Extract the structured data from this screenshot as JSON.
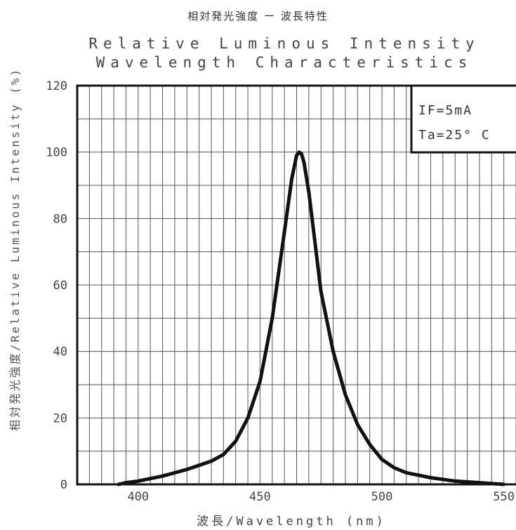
{
  "title_jp": "相対発光強度 ー 波長特性",
  "title_en_line1": "Relative Luminous Intensity",
  "title_en_line2": "Wavelength Characteristics",
  "conditions": {
    "line1": "IF=5mA",
    "line2": "Ta=25° C"
  },
  "chart_data": {
    "type": "line",
    "title": "Relative Luminous Intensity Wavelength Characteristics",
    "xlabel": "波長/Wavelength (nm)",
    "ylabel": "相対発光強度/Relative Luminous Intensity (%)",
    "xlim": [
      375,
      555
    ],
    "ylim": [
      0,
      120
    ],
    "x_ticks": [
      400,
      450,
      500,
      550
    ],
    "y_ticks": [
      0,
      20,
      40,
      60,
      80,
      100,
      120
    ],
    "grid": true,
    "series": [
      {
        "x": [
          392,
          395,
          400,
          410,
          420,
          430,
          435,
          440,
          445,
          450,
          455,
          460,
          463,
          465,
          466,
          467,
          468,
          470,
          473,
          475,
          480,
          485,
          490,
          495,
          500,
          505,
          510,
          520,
          530,
          540,
          550
        ],
        "y": [
          0,
          0.5,
          1,
          2.5,
          4.5,
          7,
          9,
          13,
          20,
          31,
          50,
          76,
          92,
          99,
          100,
          99.5,
          97,
          88,
          70,
          58,
          40,
          27,
          18,
          12,
          7.5,
          5,
          3.5,
          2,
          1,
          0.5,
          0
        ]
      }
    ]
  }
}
